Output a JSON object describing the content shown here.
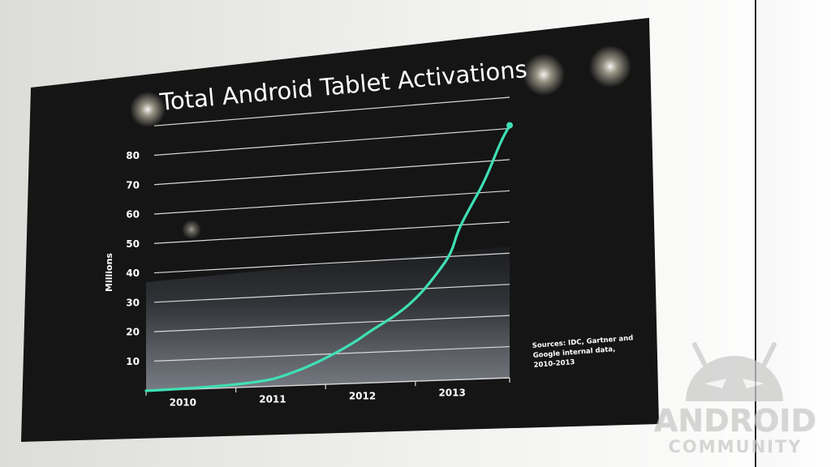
{
  "chart_data": {
    "type": "line",
    "title": "Total Android Tablet Activations",
    "ylabel": "Millions",
    "xlabel": "",
    "x_ticks": [
      "2010",
      "2011",
      "2012",
      "2013"
    ],
    "y_ticks": [
      10,
      20,
      30,
      40,
      50,
      60,
      70,
      80
    ],
    "ylim": [
      0,
      90
    ],
    "xlim": [
      2009.5,
      2013.55
    ],
    "grid": true,
    "series": [
      {
        "values": [
          {
            "x": 2009.5,
            "y": 0
          },
          {
            "x": 2010.0,
            "y": 0.3
          },
          {
            "x": 2010.5,
            "y": 1
          },
          {
            "x": 2010.85,
            "y": 2
          },
          {
            "x": 2011.0,
            "y": 3
          },
          {
            "x": 2011.3,
            "y": 6
          },
          {
            "x": 2011.6,
            "y": 10
          },
          {
            "x": 2011.85,
            "y": 14
          },
          {
            "x": 2012.0,
            "y": 17
          },
          {
            "x": 2012.3,
            "y": 22
          },
          {
            "x": 2012.55,
            "y": 28
          },
          {
            "x": 2012.75,
            "y": 35
          },
          {
            "x": 2012.9,
            "y": 41
          },
          {
            "x": 2012.97,
            "y": 48
          },
          {
            "x": 2013.1,
            "y": 55
          },
          {
            "x": 2013.28,
            "y": 64
          },
          {
            "x": 2013.45,
            "y": 76
          },
          {
            "x": 2013.55,
            "y": 81
          }
        ],
        "color": "#3fe0b5"
      }
    ],
    "annotation": "Sources: IDC, Gartner and Google internal data, 2010-2013"
  },
  "watermark": {
    "line1": "ANDROID",
    "line2": "COMMUNITY"
  },
  "colors": {
    "screen": "#141414",
    "line": "#3fe0b5",
    "grid": "#d9d9d9",
    "text": "#ffffff"
  }
}
